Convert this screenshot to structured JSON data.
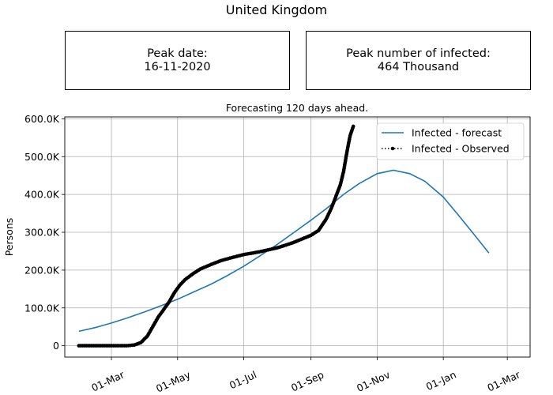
{
  "page": {
    "title": "United Kingdom",
    "peak_date_label": "Peak date:",
    "peak_date_value": "16-11-2020",
    "peak_infected_label": "Peak number of infected:",
    "peak_infected_value": "464 Thousand"
  },
  "colors": {
    "forecast": "#1f77b4",
    "observed": "#000000",
    "grid": "#b0b0b0"
  },
  "chart_data": {
    "type": "line",
    "title": "Forecasting 120 days ahead.",
    "xlabel": "",
    "ylabel": "Persons",
    "grid": true,
    "legend_position": "top-right",
    "xlim": [
      "2020-01-18",
      "2021-03-22"
    ],
    "ylim": [
      -30000,
      605000
    ],
    "x_ticks": [
      {
        "date": "2020-03-01",
        "label": "01-Mar"
      },
      {
        "date": "2020-05-01",
        "label": "01-May"
      },
      {
        "date": "2020-07-01",
        "label": "01-Jul"
      },
      {
        "date": "2020-09-01",
        "label": "01-Sep"
      },
      {
        "date": "2020-11-01",
        "label": "01-Nov"
      },
      {
        "date": "2021-01-01",
        "label": "01-Jan"
      },
      {
        "date": "2021-03-01",
        "label": "01-Mar"
      }
    ],
    "y_ticks": [
      {
        "value": 0,
        "label": "0"
      },
      {
        "value": 100000,
        "label": "100.0K"
      },
      {
        "value": 200000,
        "label": "200.0K"
      },
      {
        "value": 300000,
        "label": "300.0K"
      },
      {
        "value": 400000,
        "label": "400.0K"
      },
      {
        "value": 500000,
        "label": "500.0K"
      },
      {
        "value": 600000,
        "label": "600.0K"
      }
    ],
    "series": [
      {
        "name": "Infected - forecast",
        "style": "line",
        "points": [
          {
            "x": "2020-01-31",
            "y": 38000
          },
          {
            "x": "2020-02-15",
            "y": 48000
          },
          {
            "x": "2020-03-01",
            "y": 60000
          },
          {
            "x": "2020-03-15",
            "y": 73000
          },
          {
            "x": "2020-04-01",
            "y": 90000
          },
          {
            "x": "2020-04-15",
            "y": 105000
          },
          {
            "x": "2020-05-01",
            "y": 123000
          },
          {
            "x": "2020-05-15",
            "y": 141000
          },
          {
            "x": "2020-06-01",
            "y": 163000
          },
          {
            "x": "2020-06-15",
            "y": 184000
          },
          {
            "x": "2020-07-01",
            "y": 210000
          },
          {
            "x": "2020-07-15",
            "y": 236000
          },
          {
            "x": "2020-08-01",
            "y": 268000
          },
          {
            "x": "2020-08-15",
            "y": 297000
          },
          {
            "x": "2020-09-01",
            "y": 332000
          },
          {
            "x": "2020-09-15",
            "y": 362000
          },
          {
            "x": "2020-10-01",
            "y": 400000
          },
          {
            "x": "2020-10-15",
            "y": 428000
          },
          {
            "x": "2020-11-01",
            "y": 455000
          },
          {
            "x": "2020-11-16",
            "y": 464000
          },
          {
            "x": "2020-12-01",
            "y": 455000
          },
          {
            "x": "2020-12-15",
            "y": 435000
          },
          {
            "x": "2021-01-01",
            "y": 393000
          },
          {
            "x": "2021-01-15",
            "y": 345000
          },
          {
            "x": "2021-02-01",
            "y": 285000
          },
          {
            "x": "2021-02-12",
            "y": 245000
          }
        ]
      },
      {
        "name": "Infected - Observed",
        "style": "dotted-markers",
        "points": [
          {
            "x": "2020-01-31",
            "y": 0
          },
          {
            "x": "2020-02-15",
            "y": 0
          },
          {
            "x": "2020-03-01",
            "y": 0
          },
          {
            "x": "2020-03-15",
            "y": 0
          },
          {
            "x": "2020-03-22",
            "y": 2000
          },
          {
            "x": "2020-03-28",
            "y": 8000
          },
          {
            "x": "2020-04-03",
            "y": 25000
          },
          {
            "x": "2020-04-08",
            "y": 50000
          },
          {
            "x": "2020-04-13",
            "y": 75000
          },
          {
            "x": "2020-04-18",
            "y": 95000
          },
          {
            "x": "2020-04-23",
            "y": 115000
          },
          {
            "x": "2020-04-28",
            "y": 140000
          },
          {
            "x": "2020-05-03",
            "y": 160000
          },
          {
            "x": "2020-05-08",
            "y": 175000
          },
          {
            "x": "2020-05-15",
            "y": 190000
          },
          {
            "x": "2020-05-22",
            "y": 203000
          },
          {
            "x": "2020-06-01",
            "y": 215000
          },
          {
            "x": "2020-06-10",
            "y": 225000
          },
          {
            "x": "2020-06-20",
            "y": 233000
          },
          {
            "x": "2020-07-01",
            "y": 241000
          },
          {
            "x": "2020-07-15",
            "y": 248000
          },
          {
            "x": "2020-08-01",
            "y": 259000
          },
          {
            "x": "2020-08-15",
            "y": 272000
          },
          {
            "x": "2020-09-01",
            "y": 292000
          },
          {
            "x": "2020-09-08",
            "y": 305000
          },
          {
            "x": "2020-09-15",
            "y": 335000
          },
          {
            "x": "2020-09-20",
            "y": 365000
          },
          {
            "x": "2020-09-24",
            "y": 395000
          },
          {
            "x": "2020-09-28",
            "y": 425000
          },
          {
            "x": "2020-10-01",
            "y": 460000
          },
          {
            "x": "2020-10-04",
            "y": 510000
          },
          {
            "x": "2020-10-07",
            "y": 555000
          },
          {
            "x": "2020-10-10",
            "y": 580000
          }
        ]
      }
    ]
  }
}
